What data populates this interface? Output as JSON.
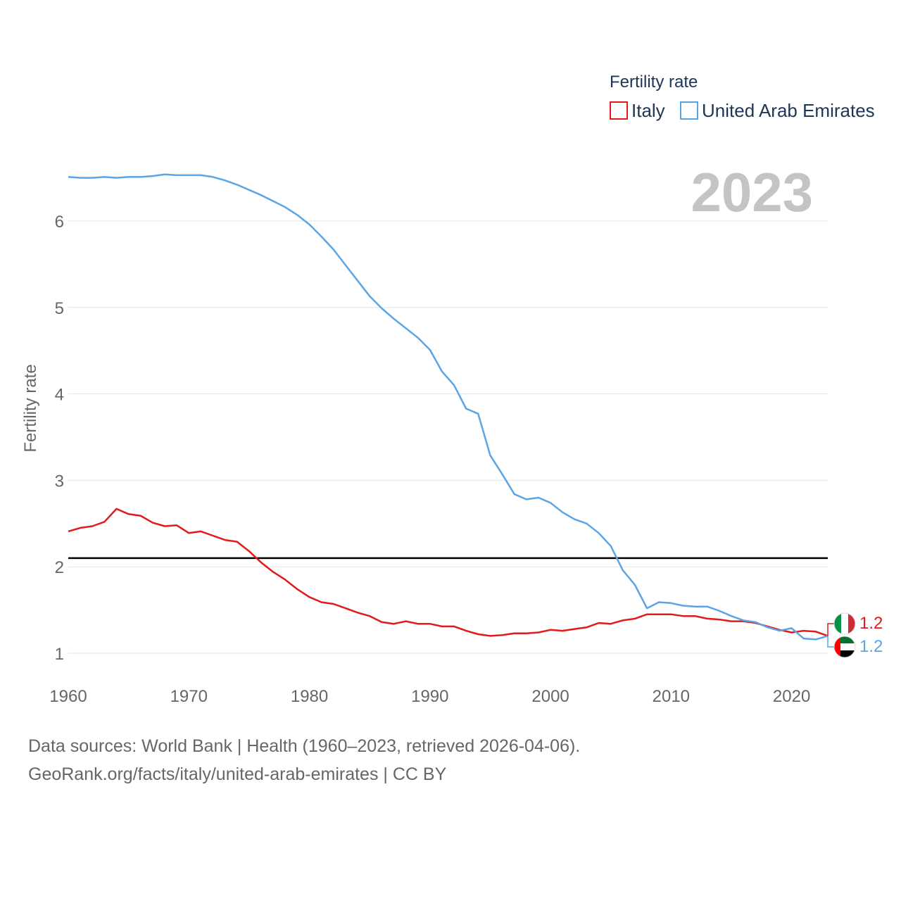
{
  "chart_data": {
    "type": "line",
    "title": "",
    "xlabel": "",
    "ylabel": "Fertility rate",
    "year_label": "2023",
    "legend_title": "Fertility rate",
    "legend_position": "top-right",
    "xlim": [
      1960,
      2023
    ],
    "ylim": [
      0.85,
      6.7
    ],
    "x_ticks": [
      1960,
      1970,
      1980,
      1990,
      2000,
      2010,
      2020
    ],
    "y_ticks": [
      1,
      2,
      3,
      4,
      5,
      6
    ],
    "grid": true,
    "reference_line": {
      "value": 2.1,
      "color": "#000000"
    },
    "x": [
      1960,
      1961,
      1962,
      1963,
      1964,
      1965,
      1966,
      1967,
      1968,
      1969,
      1970,
      1971,
      1972,
      1973,
      1974,
      1975,
      1976,
      1977,
      1978,
      1979,
      1980,
      1981,
      1982,
      1983,
      1984,
      1985,
      1986,
      1987,
      1988,
      1989,
      1990,
      1991,
      1992,
      1993,
      1994,
      1995,
      1996,
      1997,
      1998,
      1999,
      2000,
      2001,
      2002,
      2003,
      2004,
      2005,
      2006,
      2007,
      2008,
      2009,
      2010,
      2011,
      2012,
      2013,
      2014,
      2015,
      2016,
      2017,
      2018,
      2019,
      2020,
      2021,
      2022,
      2023
    ],
    "series": [
      {
        "name": "Italy",
        "color": "#e31a1c",
        "flag": "italy-flag",
        "end_label": "1.2",
        "values": [
          2.41,
          2.45,
          2.47,
          2.52,
          2.67,
          2.61,
          2.59,
          2.51,
          2.47,
          2.48,
          2.39,
          2.41,
          2.36,
          2.31,
          2.29,
          2.18,
          2.05,
          1.94,
          1.85,
          1.74,
          1.65,
          1.59,
          1.57,
          1.52,
          1.47,
          1.43,
          1.36,
          1.34,
          1.37,
          1.34,
          1.34,
          1.31,
          1.31,
          1.26,
          1.22,
          1.2,
          1.21,
          1.23,
          1.23,
          1.24,
          1.27,
          1.26,
          1.28,
          1.3,
          1.35,
          1.34,
          1.38,
          1.4,
          1.45,
          1.45,
          1.45,
          1.43,
          1.43,
          1.4,
          1.39,
          1.37,
          1.37,
          1.35,
          1.31,
          1.27,
          1.24,
          1.26,
          1.25,
          1.2
        ]
      },
      {
        "name": "United Arab Emirates",
        "color": "#5aa5e6",
        "flag": "uae-flag",
        "end_label": "1.2",
        "values": [
          6.51,
          6.5,
          6.5,
          6.51,
          6.5,
          6.51,
          6.51,
          6.52,
          6.54,
          6.53,
          6.53,
          6.53,
          6.51,
          6.47,
          6.42,
          6.36,
          6.3,
          6.23,
          6.16,
          6.07,
          5.96,
          5.82,
          5.67,
          5.49,
          5.31,
          5.13,
          4.99,
          4.87,
          4.76,
          4.65,
          4.51,
          4.26,
          4.1,
          3.83,
          3.77,
          3.29,
          3.07,
          2.84,
          2.78,
          2.8,
          2.74,
          2.63,
          2.55,
          2.5,
          2.39,
          2.24,
          1.96,
          1.79,
          1.52,
          1.59,
          1.58,
          1.55,
          1.54,
          1.54,
          1.49,
          1.43,
          1.38,
          1.36,
          1.3,
          1.26,
          1.29,
          1.17,
          1.16,
          1.2
        ]
      }
    ]
  },
  "footer": {
    "line1": "Data sources: World Bank | Health (1960–2023, retrieved 2026-04-06).",
    "line2": "GeoRank.org/facts/italy/united-arab-emirates | CC BY"
  }
}
